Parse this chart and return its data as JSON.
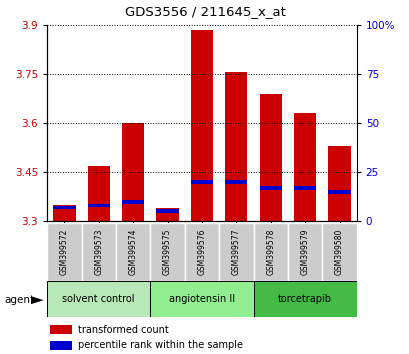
{
  "title": "GDS3556 / 211645_x_at",
  "samples": [
    "GSM399572",
    "GSM399573",
    "GSM399574",
    "GSM399575",
    "GSM399576",
    "GSM399577",
    "GSM399578",
    "GSM399579",
    "GSM399580"
  ],
  "transformed_count": [
    3.35,
    3.47,
    3.6,
    3.34,
    3.885,
    3.755,
    3.69,
    3.63,
    3.53
  ],
  "percentile_rank_pct": [
    7,
    8,
    10,
    5,
    20,
    20,
    17,
    17,
    15
  ],
  "baseline": 3.3,
  "ylim_left": [
    3.3,
    3.9
  ],
  "ylim_right": [
    0,
    100
  ],
  "yticks_left": [
    3.3,
    3.45,
    3.6,
    3.75,
    3.9
  ],
  "yticks_right": [
    0,
    25,
    50,
    75,
    100
  ],
  "bar_color": "#cc0000",
  "blue_color": "#0000cc",
  "bar_width": 0.65,
  "groups": [
    {
      "label": "solvent control",
      "samples": [
        0,
        1,
        2
      ],
      "color": "#b8e8b8"
    },
    {
      "label": "angiotensin II",
      "samples": [
        3,
        4,
        5
      ],
      "color": "#90ee90"
    },
    {
      "label": "torcetrapib",
      "samples": [
        6,
        7,
        8
      ],
      "color": "#44bb44"
    }
  ],
  "agent_label": "agent",
  "legend_items": [
    "transformed count",
    "percentile rank within the sample"
  ],
  "tick_color_left": "#cc0000",
  "tick_color_right": "#0000cc",
  "sample_bg": "#cccccc"
}
